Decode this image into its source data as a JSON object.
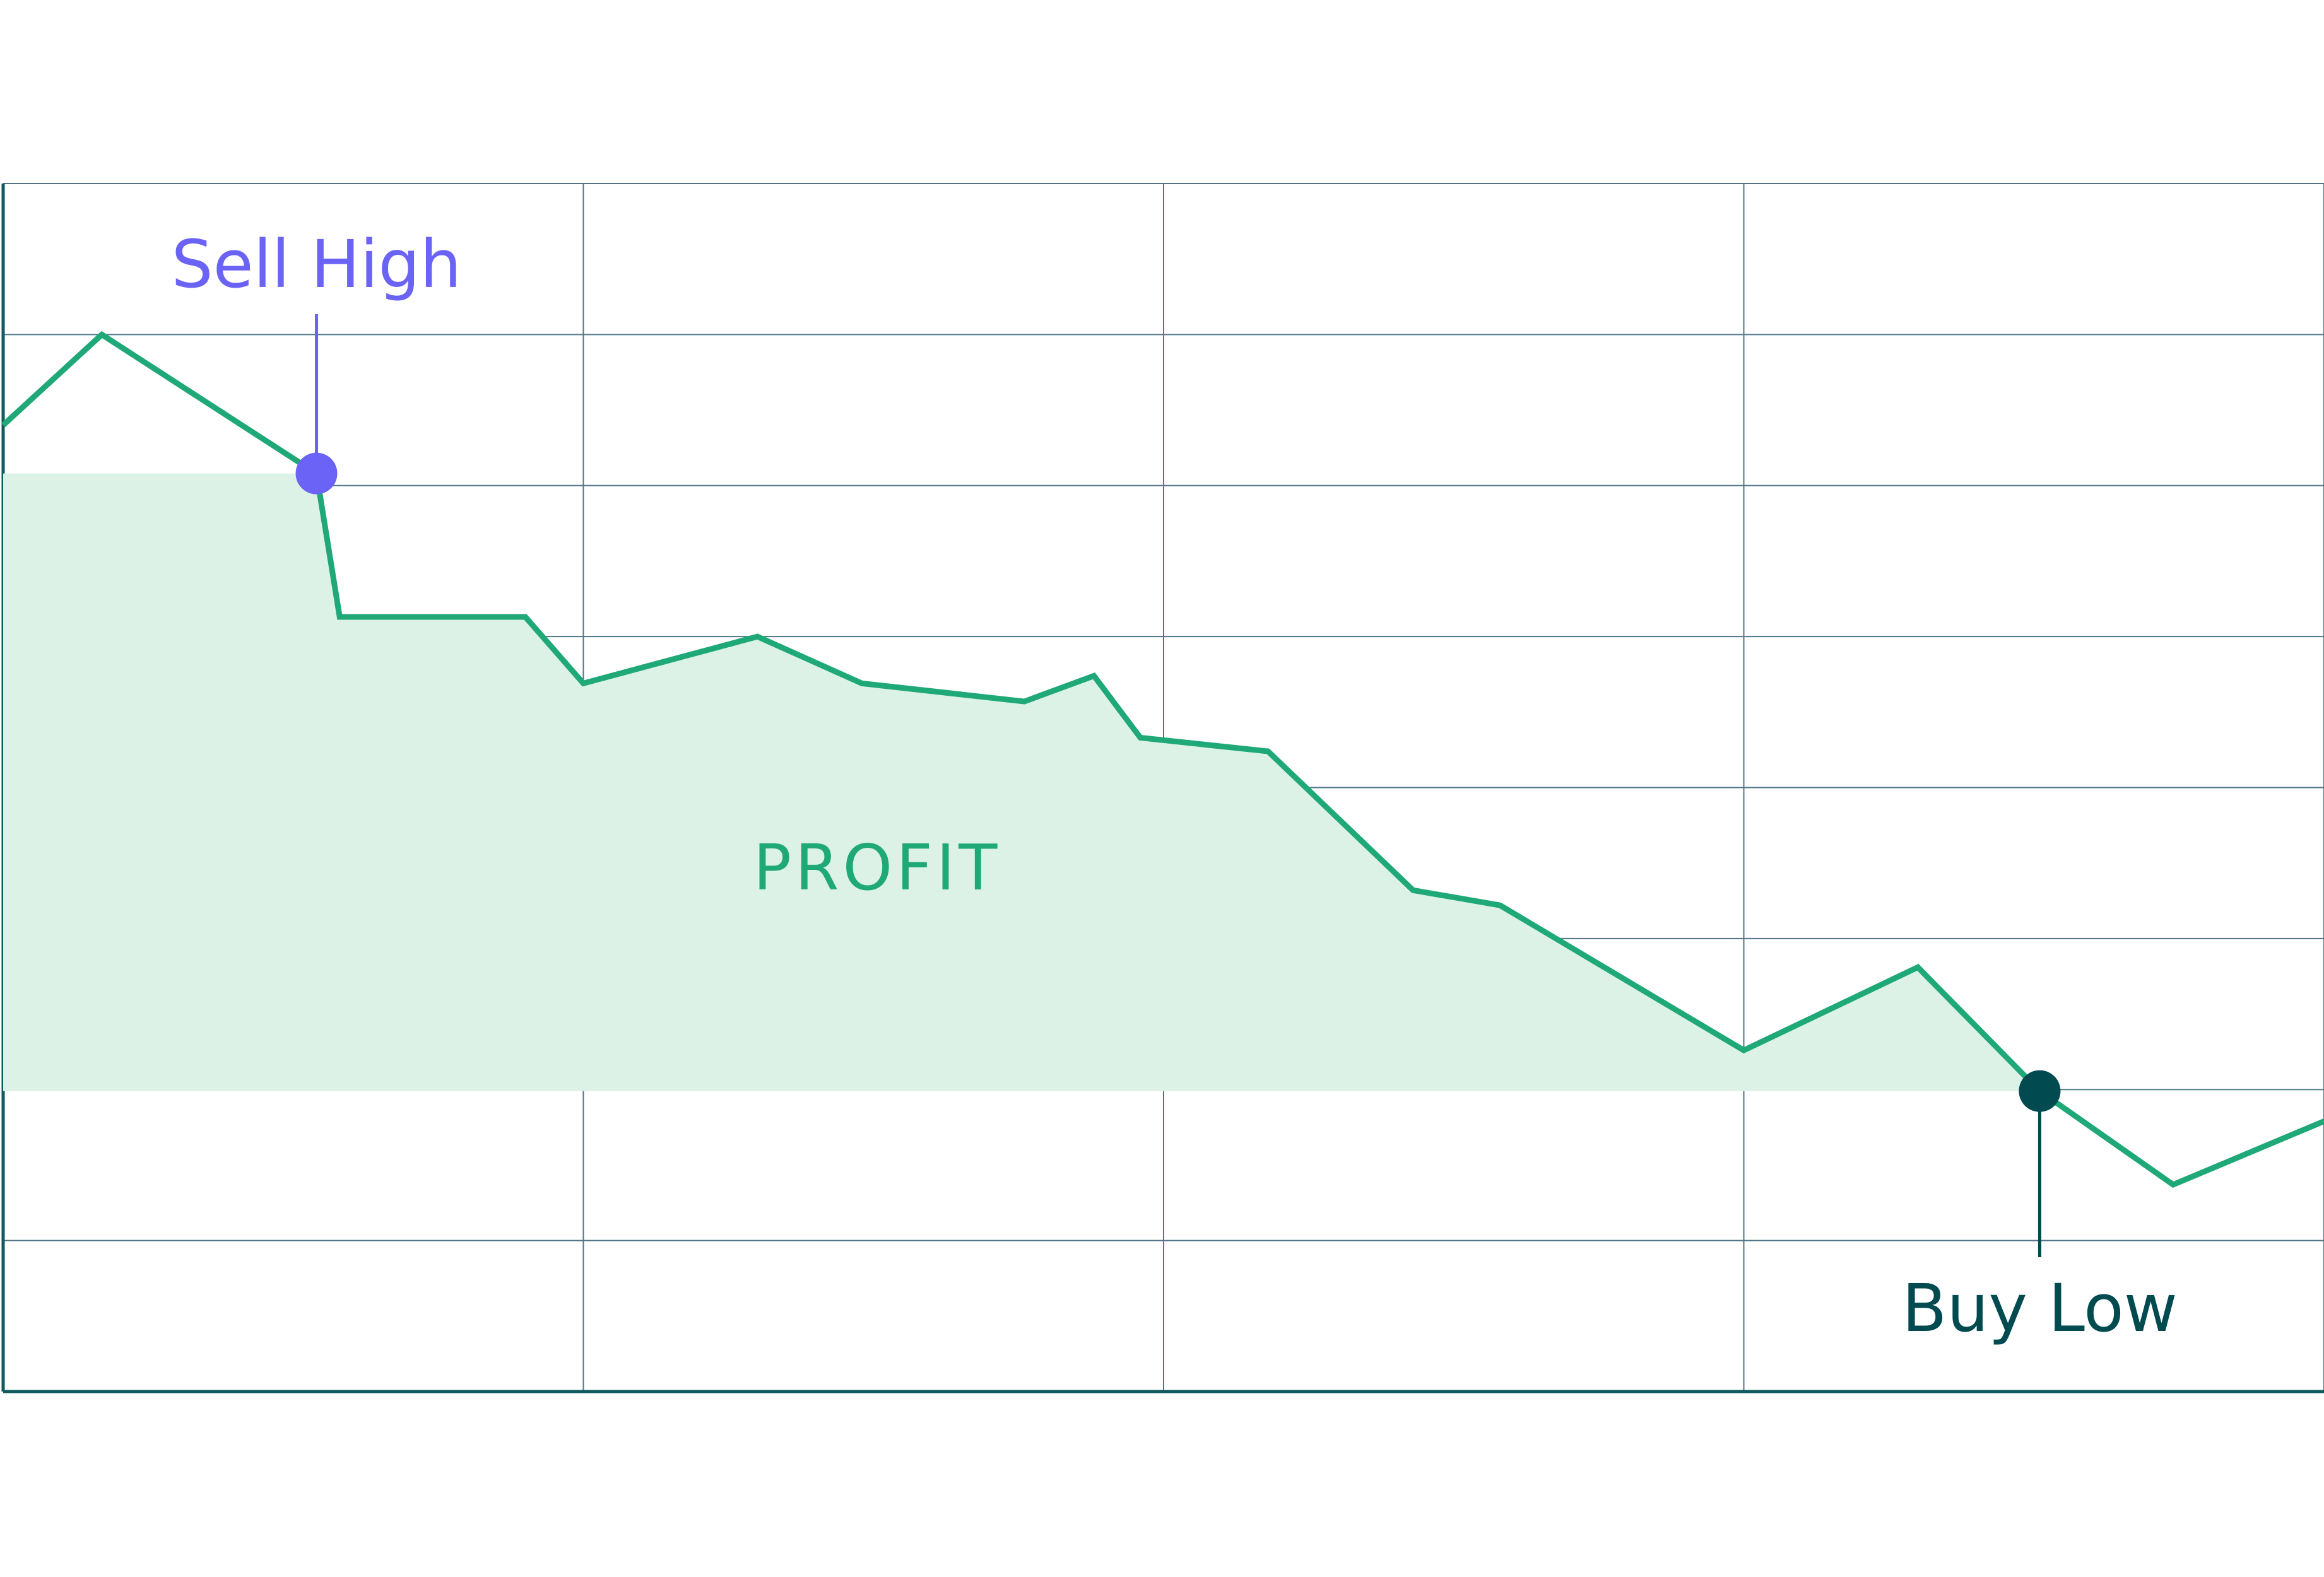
{
  "chart_data": {
    "type": "line",
    "area_label": "PROFIT",
    "xlim": [
      0,
      4
    ],
    "xticks": [
      0,
      1,
      2,
      3,
      4
    ],
    "ylim": [
      0,
      8
    ],
    "yticks": [
      0,
      1,
      2,
      3,
      4,
      5,
      6,
      7,
      8
    ],
    "grid": true,
    "area_color": "#dcf2e7",
    "series": [
      {
        "color": "#1fa878",
        "x": [
          0,
          0.17,
          0.54,
          0.58,
          0.9,
          1.0,
          1.3,
          1.48,
          1.76,
          1.88,
          1.96,
          2.18,
          2.43,
          2.58,
          3.0,
          3.3,
          3.51,
          3.74,
          4.0
        ],
        "values": [
          6.4,
          7.0,
          6.08,
          5.13,
          5.13,
          4.69,
          5.0,
          4.69,
          4.57,
          4.74,
          4.33,
          4.24,
          3.32,
          3.22,
          2.26,
          2.81,
          1.99,
          1.37,
          1.79
        ]
      }
    ],
    "annotations": [
      {
        "text": "Sell High",
        "x": 0.54,
        "y": 6.08,
        "color": "#6b63f5"
      },
      {
        "text": "Buy Low",
        "x": 3.51,
        "y": 1.99,
        "color": "#004a50"
      }
    ]
  }
}
